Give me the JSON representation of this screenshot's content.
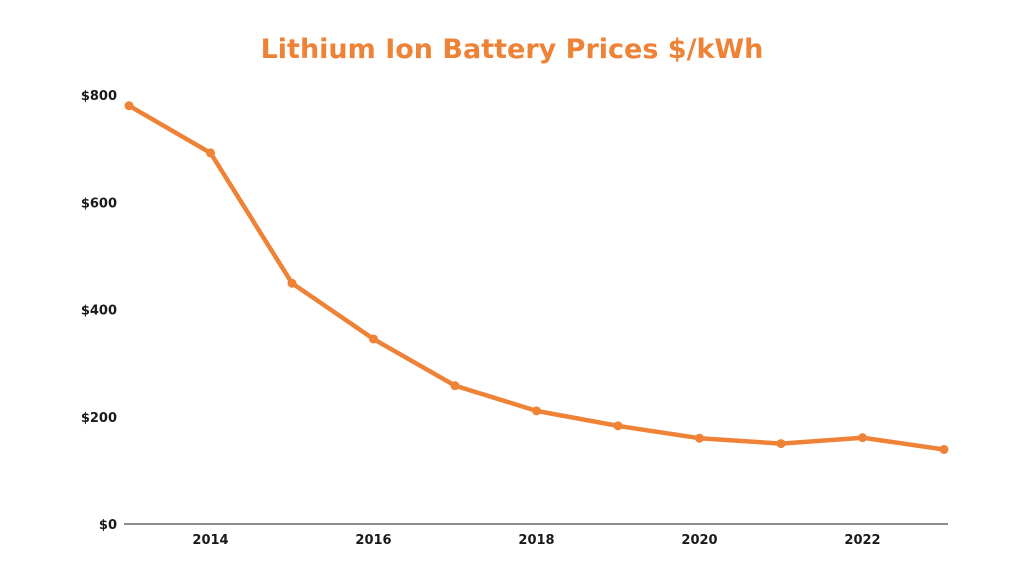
{
  "colors": {
    "accent": "#ee8236",
    "axis": "#666666",
    "text": "#1a1a1a",
    "background": "#ffffff"
  },
  "chart_data": {
    "type": "line",
    "title": "Lithium Ion Battery Prices $/kWh",
    "xlabel": "",
    "ylabel": "",
    "x": [
      2013,
      2014,
      2015,
      2016,
      2017,
      2018,
      2019,
      2020,
      2021,
      2022,
      2023
    ],
    "series": [
      {
        "name": "Lithium Ion Battery Prices $/kWh",
        "values": [
          780,
          692,
          449,
          345,
          258,
          211,
          183,
          160,
          150,
          161,
          139
        ]
      }
    ],
    "xlim": [
      2013,
      2023
    ],
    "ylim": [
      0,
      800
    ],
    "x_ticks": [
      2014,
      2016,
      2018,
      2020,
      2022
    ],
    "x_tick_labels": [
      "2014",
      "2016",
      "2018",
      "2020",
      "2022"
    ],
    "y_ticks": [
      0,
      200,
      400,
      600,
      800
    ],
    "y_tick_labels": [
      "$0",
      "$200",
      "$400",
      "$600",
      "$800"
    ],
    "grid": false,
    "legend": "none"
  }
}
